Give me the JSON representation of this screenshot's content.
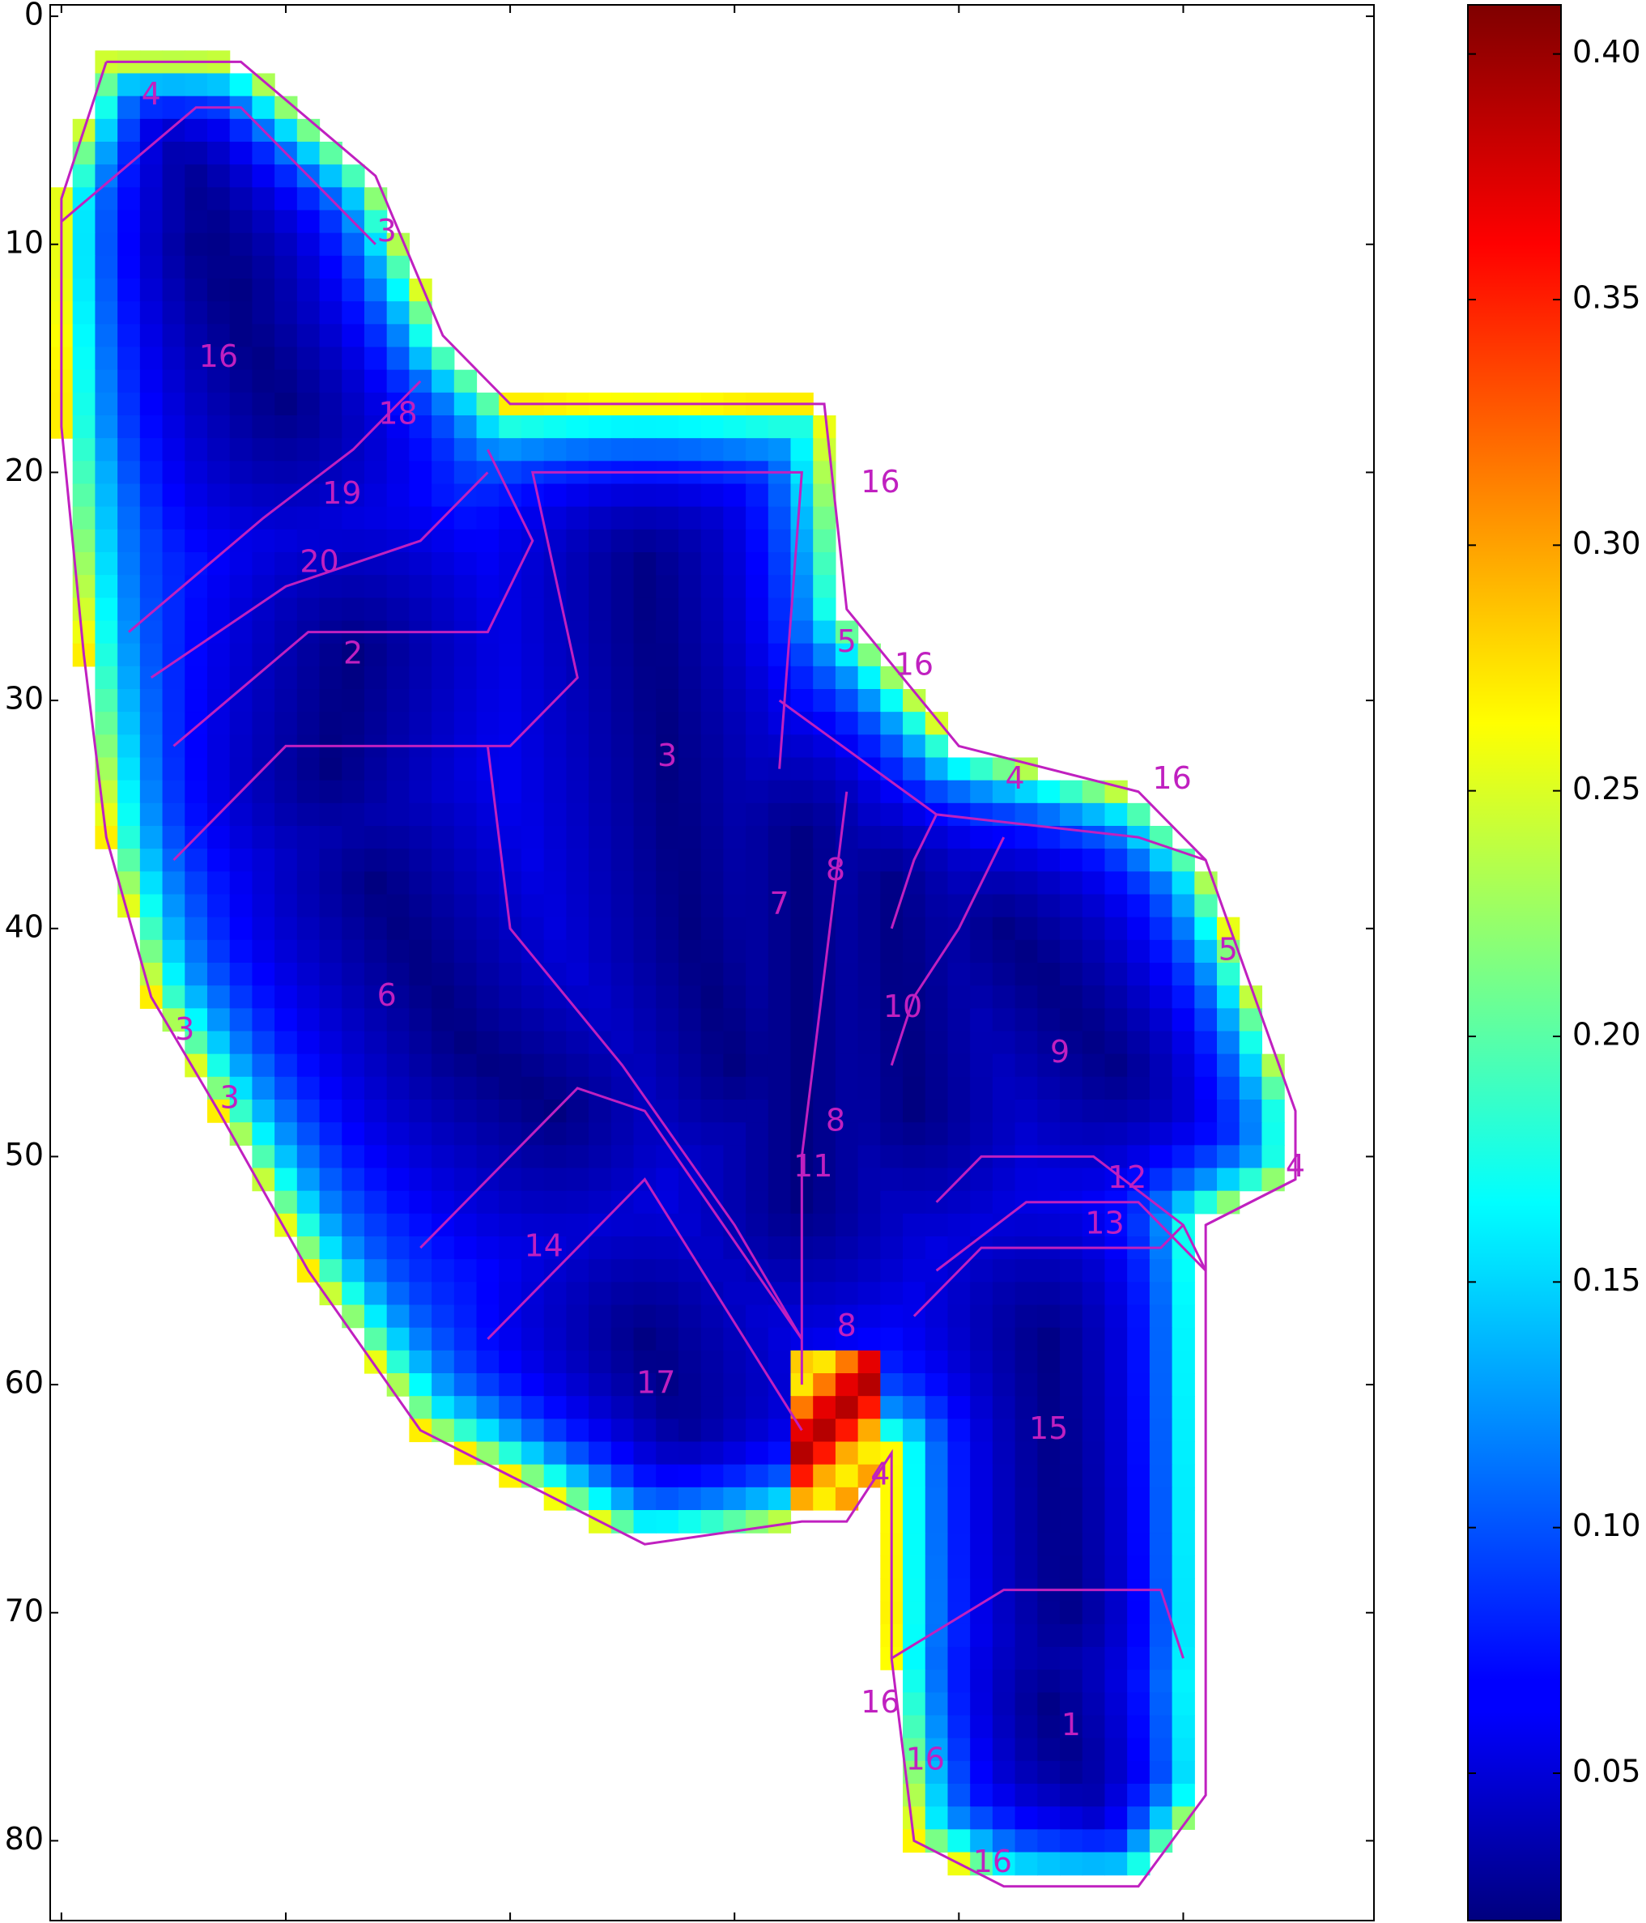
{
  "chart_data": {
    "type": "heatmap",
    "title": "",
    "xlabel": "",
    "ylabel": "",
    "xlim": [
      -0.5,
      58.5
    ],
    "ylim": [
      83.5,
      -0.5
    ],
    "x_ticks": [
      0,
      10,
      20,
      30,
      40,
      50
    ],
    "y_ticks": [
      0,
      10,
      20,
      30,
      40,
      50,
      60,
      70,
      80
    ],
    "grid": false,
    "colormap": "jet",
    "colorbar": {
      "range": [
        0.02,
        0.41
      ],
      "ticks": [
        0.05,
        0.1,
        0.15,
        0.2,
        0.25,
        0.3,
        0.35,
        0.4
      ],
      "tick_labels": [
        "0.05",
        "0.10",
        "0.15",
        "0.20",
        "0.25",
        "0.30",
        "0.35",
        "0.40"
      ]
    },
    "contour_color": "#c020c0",
    "region_labels": [
      {
        "text": "4",
        "x": 4,
        "y": 3.5
      },
      {
        "text": "3",
        "x": 14.5,
        "y": 9.5
      },
      {
        "text": "16",
        "x": 7,
        "y": 15
      },
      {
        "text": "18",
        "x": 15,
        "y": 17.5
      },
      {
        "text": "19",
        "x": 12.5,
        "y": 21
      },
      {
        "text": "20",
        "x": 11.5,
        "y": 24
      },
      {
        "text": "2",
        "x": 13,
        "y": 28
      },
      {
        "text": "3",
        "x": 27,
        "y": 32.5
      },
      {
        "text": "16",
        "x": 36.5,
        "y": 20.5
      },
      {
        "text": "5",
        "x": 35,
        "y": 27.5
      },
      {
        "text": "16",
        "x": 38,
        "y": 28.5
      },
      {
        "text": "4",
        "x": 42.5,
        "y": 33.5
      },
      {
        "text": "16",
        "x": 49.5,
        "y": 33.5
      },
      {
        "text": "8",
        "x": 34.5,
        "y": 37.5
      },
      {
        "text": "7",
        "x": 32,
        "y": 39
      },
      {
        "text": "6",
        "x": 14.5,
        "y": 43
      },
      {
        "text": "10",
        "x": 37.5,
        "y": 43.5
      },
      {
        "text": "9",
        "x": 44.5,
        "y": 45.5
      },
      {
        "text": "5",
        "x": 52,
        "y": 41
      },
      {
        "text": "3",
        "x": 5.5,
        "y": 44.5
      },
      {
        "text": "3",
        "x": 7.5,
        "y": 47.5
      },
      {
        "text": "8",
        "x": 34.5,
        "y": 48.5
      },
      {
        "text": "11",
        "x": 33.5,
        "y": 50.5
      },
      {
        "text": "12",
        "x": 47.5,
        "y": 51
      },
      {
        "text": "4",
        "x": 55,
        "y": 50.5
      },
      {
        "text": "13",
        "x": 46.5,
        "y": 53
      },
      {
        "text": "14",
        "x": 21.5,
        "y": 54
      },
      {
        "text": "8",
        "x": 35,
        "y": 57.5
      },
      {
        "text": "17",
        "x": 26.5,
        "y": 60
      },
      {
        "text": "15",
        "x": 44,
        "y": 62
      },
      {
        "text": "4",
        "x": 36.5,
        "y": 64
      },
      {
        "text": "16",
        "x": 36.5,
        "y": 74
      },
      {
        "text": "1",
        "x": 45,
        "y": 75
      },
      {
        "text": "16",
        "x": 38.5,
        "y": 76.5
      },
      {
        "text": "16",
        "x": 41.5,
        "y": 81
      }
    ]
  }
}
